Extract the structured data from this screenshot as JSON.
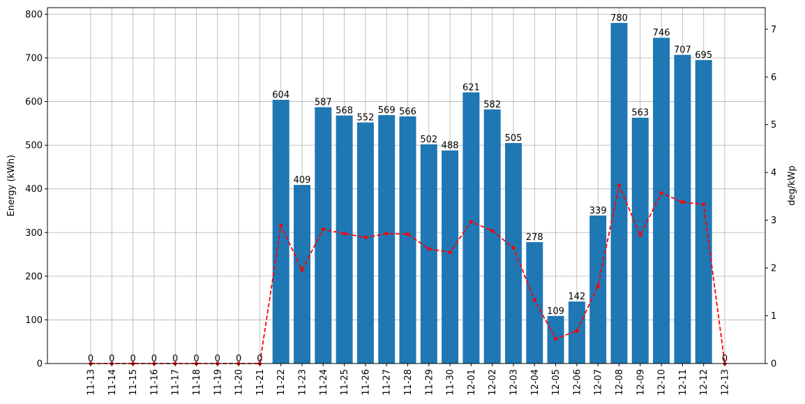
{
  "chart_data": {
    "type": "bar",
    "categories": [
      "11-13",
      "11-14",
      "11-15",
      "11-16",
      "11-17",
      "11-18",
      "11-19",
      "11-20",
      "11-21",
      "11-22",
      "11-23",
      "11-24",
      "11-25",
      "11-26",
      "11-27",
      "11-28",
      "11-29",
      "11-30",
      "12-01",
      "12-02",
      "12-03",
      "12-04",
      "12-05",
      "12-06",
      "12-07",
      "12-08",
      "12-09",
      "12-10",
      "12-11",
      "12-12",
      "12-13"
    ],
    "series": [
      {
        "type": "bar",
        "axis": "left",
        "color": "#1f77b4",
        "values": [
          0,
          0,
          0,
          0,
          0,
          0,
          0,
          0,
          0,
          604,
          409,
          587,
          568,
          552,
          569,
          566,
          502,
          488,
          621,
          582,
          505,
          278,
          109,
          142,
          339,
          780,
          563,
          746,
          707,
          695,
          0
        ],
        "data_labels": [
          "0",
          "0",
          "0",
          "0",
          "0",
          "0",
          "0",
          "0",
          "0",
          "604",
          "409",
          "587",
          "568",
          "552",
          "569",
          "566",
          "502",
          "488",
          "621",
          "582",
          "505",
          "278",
          "109",
          "142",
          "339",
          "780",
          "563",
          "746",
          "707",
          "695",
          "0"
        ]
      },
      {
        "type": "line",
        "axis": "right",
        "color": "#ff0000",
        "style": "dashed",
        "marker": "dot",
        "values": [
          0,
          0,
          0,
          0,
          0,
          0,
          0,
          0,
          0,
          2.89,
          1.96,
          2.81,
          2.72,
          2.64,
          2.72,
          2.71,
          2.4,
          2.33,
          2.97,
          2.78,
          2.42,
          1.33,
          0.52,
          0.68,
          1.62,
          3.73,
          2.69,
          3.57,
          3.38,
          3.33,
          0
        ]
      }
    ],
    "ylabel": "Energy (kWh)",
    "y2label": "deg/kWp",
    "ylim": [
      0,
      815
    ],
    "y2lim": [
      0,
      7.45
    ],
    "yticks": [
      0,
      100,
      200,
      300,
      400,
      500,
      600,
      700,
      800
    ],
    "y2ticks": [
      0,
      1,
      2,
      3,
      4,
      5,
      6,
      7
    ],
    "grid": true
  }
}
